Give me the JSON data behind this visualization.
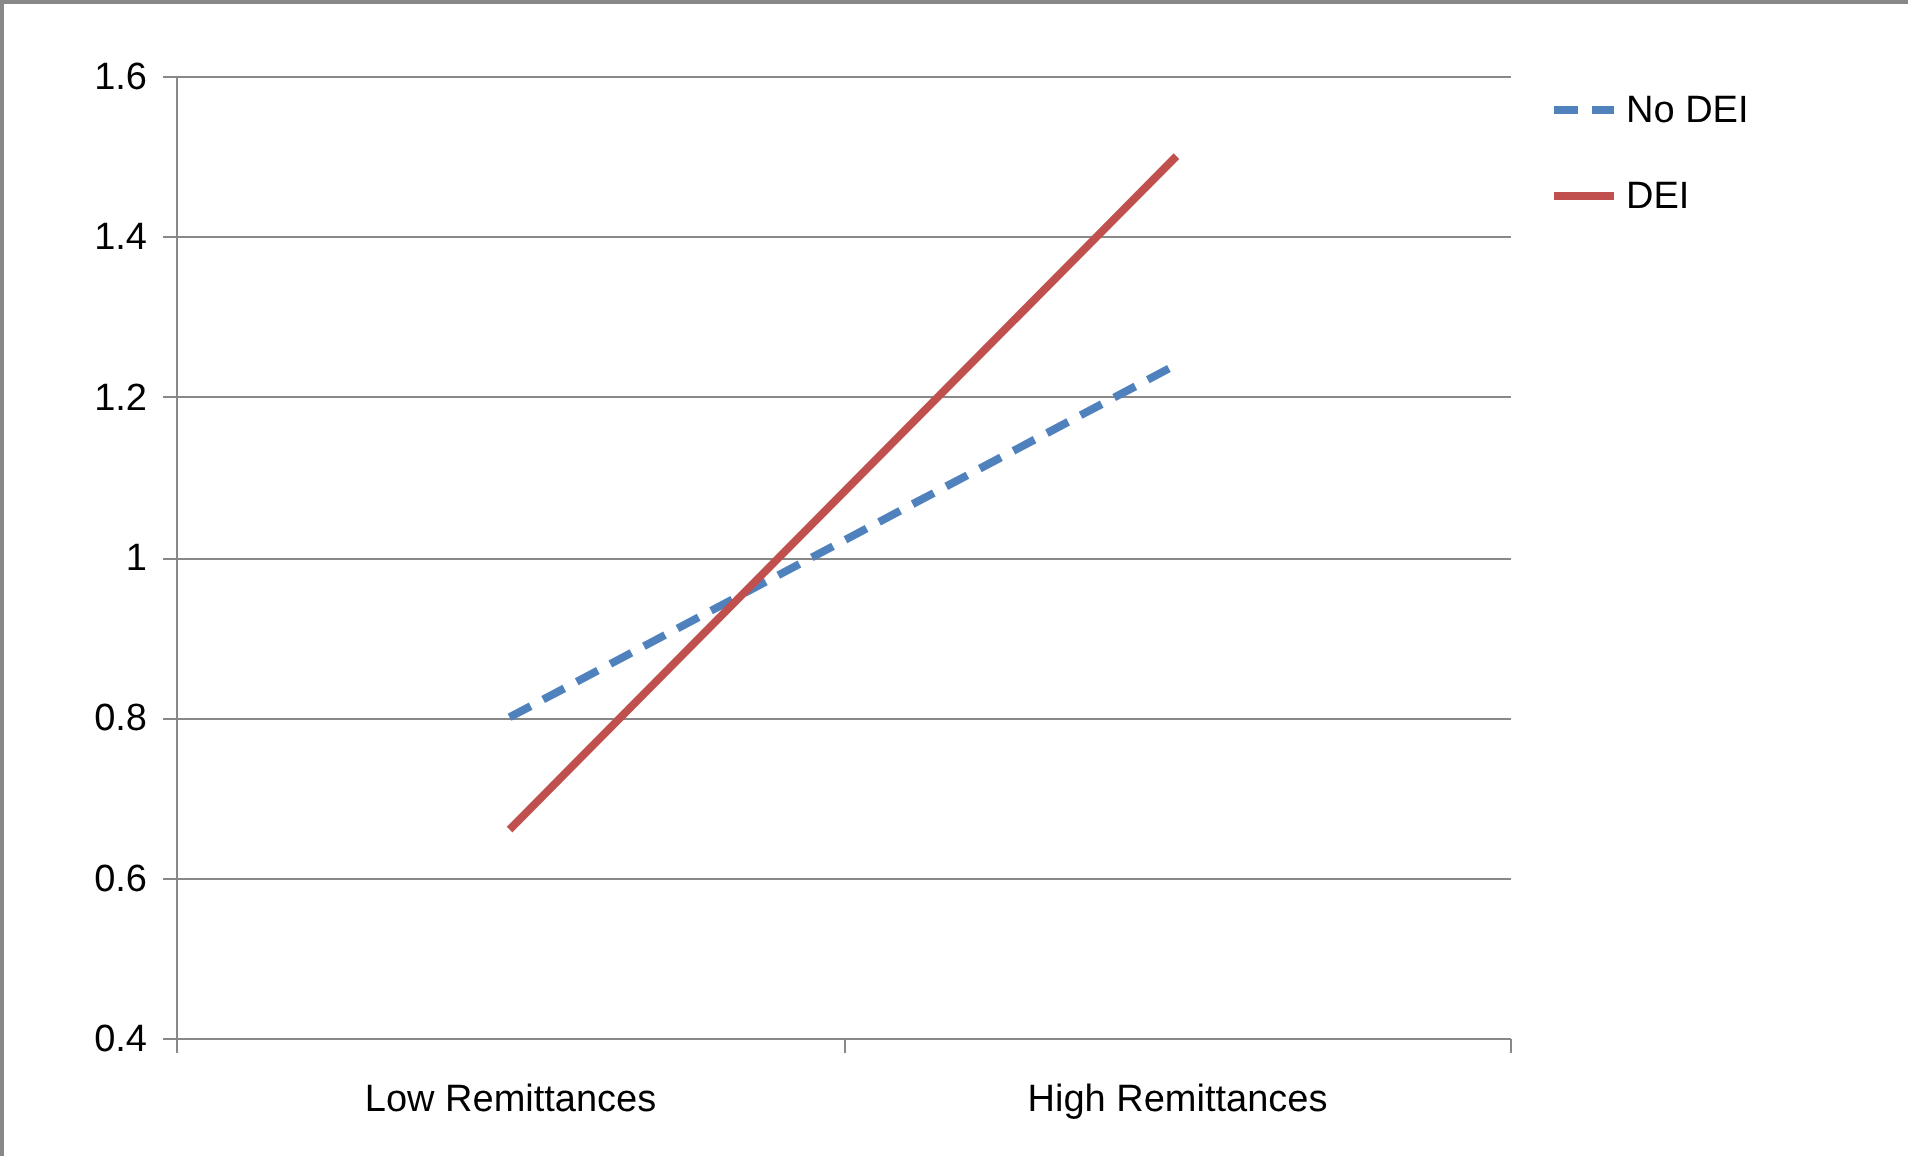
{
  "chart_data": {
    "type": "line",
    "categories": [
      "Low Remittances",
      "High Remittances"
    ],
    "series": [
      {
        "name": "No DEI",
        "color": "#4f81bd",
        "line_style": "dashed",
        "values": [
          0.8,
          1.24
        ]
      },
      {
        "name": "DEI",
        "color": "#c0504d",
        "line_style": "solid",
        "values": [
          0.66,
          1.5
        ]
      }
    ],
    "ylim": [
      0.4,
      1.6
    ],
    "yticks": [
      0.4,
      0.6,
      0.8,
      1,
      1.2,
      1.4,
      1.6
    ],
    "grid": "y",
    "legend": "right"
  }
}
